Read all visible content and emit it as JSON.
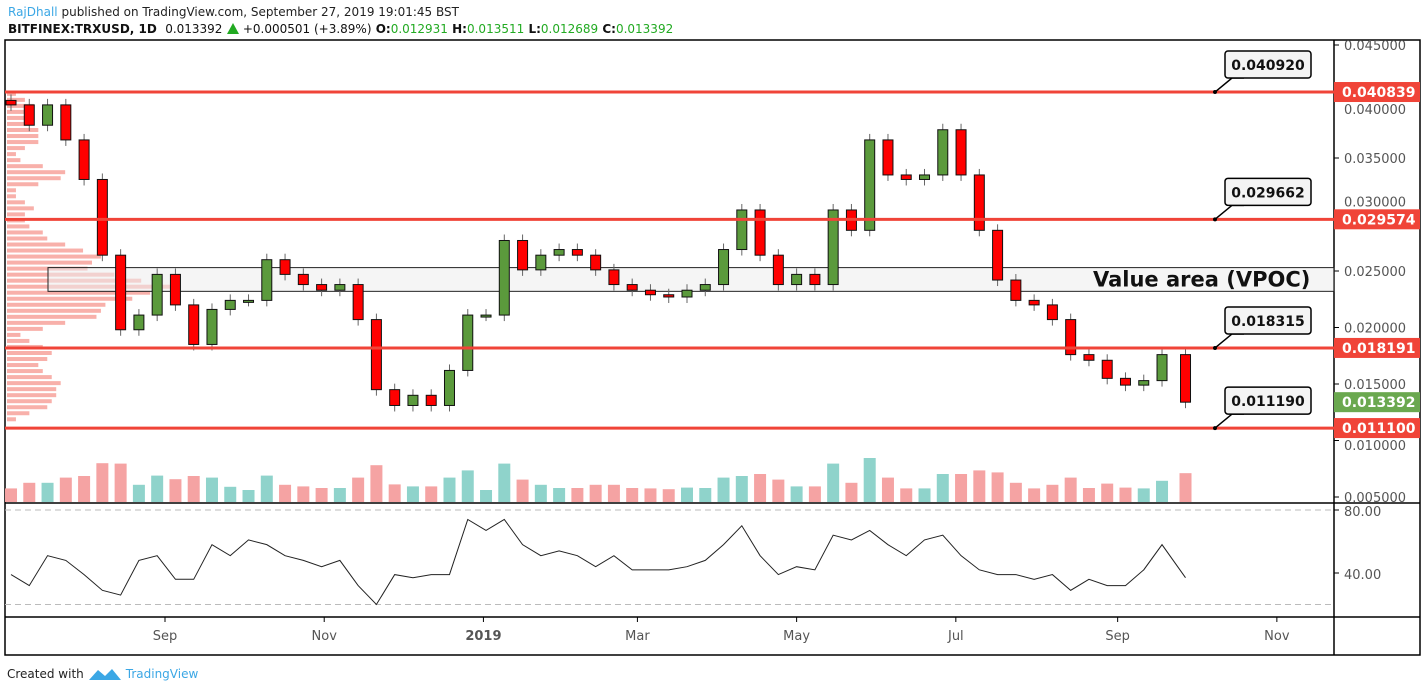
{
  "header": {
    "user": "RajDhall",
    "published": "published on TradingView.com, September 27, 2019 19:01:45 BST",
    "symbol": "BITFINEX:TRXUSD, 1D",
    "last": "0.013392",
    "change": "+0.000501 (+3.89%)",
    "o_label": "O:",
    "o": "0.012931",
    "h_label": "H:",
    "h": "0.013511",
    "l_label": "L:",
    "l": "0.012689",
    "c_label": "C:",
    "c": "0.013392"
  },
  "footer": {
    "created": "Created with",
    "brand": "TradingView"
  },
  "colors": {
    "up": "#5b9a3c",
    "down": "#ff0000",
    "level": "#f04438",
    "last_price": "#6aa84f",
    "vol_up": "#8fd3cb",
    "vol_down": "#f5a3a3",
    "profile": "#f7a29b",
    "brand": "#3ba7e5"
  },
  "chart_data": {
    "type": "candlestick",
    "title": "",
    "price_axis": {
      "ylim": [
        0.004,
        0.046
      ],
      "ticks": [
        "0.045000",
        "0.040000",
        "0.035000",
        "0.030000",
        "0.025000",
        "0.020000",
        "0.015000",
        "0.010000",
        "0.005000"
      ]
    },
    "time_axis": {
      "ticks": [
        {
          "label": "Sep",
          "date": "2018-09-01",
          "bold": false
        },
        {
          "label": "Nov",
          "date": "2018-11-01",
          "bold": false
        },
        {
          "label": "2019",
          "date": "2019-01-01",
          "bold": true
        },
        {
          "label": "Mar",
          "date": "2019-03-01",
          "bold": false
        },
        {
          "label": "May",
          "date": "2019-05-01",
          "bold": false
        },
        {
          "label": "Jul",
          "date": "2019-07-01",
          "bold": false
        },
        {
          "label": "Sep",
          "date": "2019-09-01",
          "bold": false
        },
        {
          "label": "Nov",
          "date": "2019-11-01",
          "bold": false
        }
      ]
    },
    "dates": [
      "2018-07-04",
      "2018-07-11",
      "2018-07-18",
      "2018-07-25",
      "2018-08-01",
      "2018-08-08",
      "2018-08-15",
      "2018-08-22",
      "2018-08-29",
      "2018-09-05",
      "2018-09-12",
      "2018-09-19",
      "2018-09-26",
      "2018-10-03",
      "2018-10-10",
      "2018-10-17",
      "2018-10-24",
      "2018-10-31",
      "2018-11-07",
      "2018-11-14",
      "2018-11-21",
      "2018-11-28",
      "2018-12-05",
      "2018-12-12",
      "2018-12-19",
      "2018-12-26",
      "2019-01-02",
      "2019-01-09",
      "2019-01-16",
      "2019-01-23",
      "2019-01-30",
      "2019-02-06",
      "2019-02-13",
      "2019-02-20",
      "2019-02-27",
      "2019-03-06",
      "2019-03-13",
      "2019-03-20",
      "2019-03-27",
      "2019-04-03",
      "2019-04-10",
      "2019-04-17",
      "2019-04-24",
      "2019-05-01",
      "2019-05-08",
      "2019-05-15",
      "2019-05-22",
      "2019-05-29",
      "2019-06-05",
      "2019-06-12",
      "2019-06-19",
      "2019-06-26",
      "2019-07-03",
      "2019-07-10",
      "2019-07-17",
      "2019-07-24",
      "2019-07-31",
      "2019-08-07",
      "2019-08-14",
      "2019-08-21",
      "2019-08-28",
      "2019-09-04",
      "2019-09-11",
      "2019-09-18",
      "2019-09-27"
    ],
    "close": [
      0.0397,
      0.0379,
      0.0397,
      0.0366,
      0.0331,
      0.0264,
      0.0198,
      0.0211,
      0.0247,
      0.022,
      0.0185,
      0.0216,
      0.0224,
      0.0224,
      0.026,
      0.0247,
      0.0238,
      0.0233,
      0.0238,
      0.0207,
      0.0145,
      0.0131,
      0.014,
      0.0131,
      0.0162,
      0.0211,
      0.0211,
      0.0277,
      0.0251,
      0.0264,
      0.0269,
      0.0264,
      0.0251,
      0.0238,
      0.0233,
      0.0229,
      0.0227,
      0.0233,
      0.0238,
      0.0269,
      0.0304,
      0.0264,
      0.0238,
      0.0247,
      0.0238,
      0.0304,
      0.0286,
      0.0366,
      0.0335,
      0.0331,
      0.0335,
      0.0375,
      0.0335,
      0.0286,
      0.0242,
      0.0224,
      0.022,
      0.0207,
      0.0176,
      0.0171,
      0.0155,
      0.0149,
      0.0153,
      0.0176,
      0.013392
    ],
    "levels": [
      {
        "price": 0.040839,
        "label": "0.040839",
        "callout": "0.040920"
      },
      {
        "price": 0.029574,
        "label": "0.029574",
        "callout": "0.029662"
      },
      {
        "price": 0.018191,
        "label": "0.018191",
        "callout": "0.018315"
      },
      {
        "price": 0.0111,
        "label": "0.011100",
        "callout": "0.011190"
      }
    ],
    "last_price": {
      "price": 0.013392,
      "label": "0.013392"
    },
    "value_area": {
      "label": "Value area (VPOC)",
      "top": 0.0253,
      "bottom": 0.0232
    },
    "rsi": {
      "ticks": [
        "80.00",
        "40.00"
      ],
      "bands": [
        80,
        20
      ],
      "values": [
        39,
        32,
        51,
        48,
        39,
        29,
        26,
        48,
        51,
        36,
        36,
        58,
        51,
        61,
        58,
        51,
        48,
        44,
        48,
        32,
        20,
        39,
        37,
        39,
        39,
        74,
        67,
        74,
        58,
        51,
        54,
        51,
        44,
        51,
        42,
        42,
        42,
        44,
        48,
        58,
        70,
        51,
        39,
        44,
        42,
        64,
        61,
        67,
        58,
        51,
        61,
        64,
        51,
        42,
        39,
        39,
        36,
        39,
        29,
        36,
        32,
        32,
        42,
        58,
        37
      ]
    }
  }
}
